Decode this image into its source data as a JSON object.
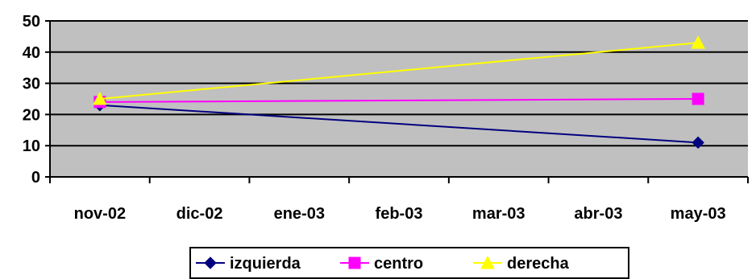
{
  "chart_data": {
    "type": "line",
    "categories": [
      "nov-02",
      "dic-02",
      "ene-03",
      "feb-03",
      "mar-03",
      "abr-03",
      "may-03"
    ],
    "x": [
      "nov-02",
      "may-03"
    ],
    "series": [
      {
        "name": "izquierda",
        "values": [
          23,
          11
        ],
        "color": "#000080",
        "marker": "diamond"
      },
      {
        "name": "centro",
        "values": [
          24,
          25
        ],
        "color": "#FF00FF",
        "marker": "square"
      },
      {
        "name": "derecha",
        "values": [
          25,
          43
        ],
        "color": "#FFFF00",
        "marker": "triangle"
      }
    ],
    "ylim": [
      0,
      50
    ],
    "yticks": [
      "0",
      "10",
      "20",
      "30",
      "40",
      "50"
    ],
    "grid": true,
    "plot_background": "#C0C0C0",
    "legend_position": "bottom"
  }
}
